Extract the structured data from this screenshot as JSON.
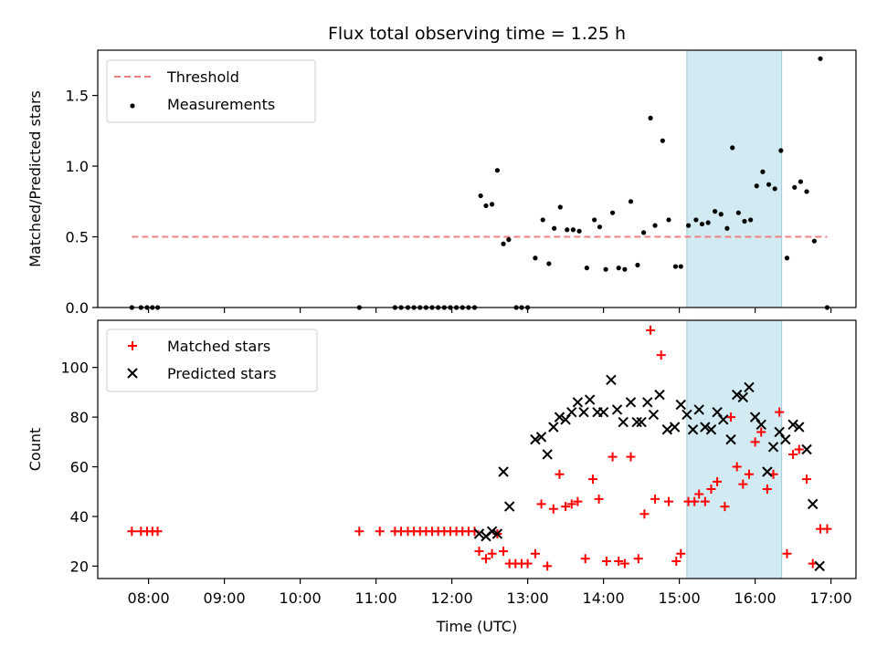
{
  "chart_data": [
    {
      "type": "scatter",
      "title": "Flux total observing time = 1.25 h",
      "xlabel": "",
      "ylabel": "Matched/Predicted stars",
      "xlim": [
        7.33,
        17.33
      ],
      "ylim": [
        0,
        1.82
      ],
      "yticks": [
        0,
        0.5,
        1.0,
        1.5
      ],
      "ytick_labels": [
        "0.0",
        "0.5",
        "1.0",
        "1.5"
      ],
      "highlight_span": {
        "x": [
          15.1,
          16.35
        ],
        "color": "#add8e6"
      },
      "legend": [
        {
          "label": "Threshold",
          "style": "dashed-line",
          "color": "#f08080"
        },
        {
          "label": "Measurements",
          "style": "dot",
          "color": "#000000"
        }
      ],
      "series": [
        {
          "name": "Threshold",
          "kind": "line",
          "color": "#f08080",
          "points": [
            [
              7.78,
              0.5
            ],
            [
              16.95,
              0.5
            ]
          ]
        },
        {
          "name": "Measurements",
          "kind": "scatter",
          "marker": "dot",
          "color": "#000000",
          "points": [
            [
              7.78,
              0
            ],
            [
              7.9,
              0
            ],
            [
              7.98,
              0
            ],
            [
              8.05,
              0
            ],
            [
              8.12,
              0
            ],
            [
              10.78,
              0
            ],
            [
              11.25,
              0
            ],
            [
              11.33,
              0
            ],
            [
              11.42,
              0
            ],
            [
              11.5,
              0
            ],
            [
              11.58,
              0
            ],
            [
              11.66,
              0
            ],
            [
              11.74,
              0
            ],
            [
              11.82,
              0
            ],
            [
              11.9,
              0
            ],
            [
              11.98,
              0
            ],
            [
              12.06,
              0
            ],
            [
              12.14,
              0
            ],
            [
              12.22,
              0
            ],
            [
              12.3,
              0
            ],
            [
              12.38,
              0.79
            ],
            [
              12.45,
              0.72
            ],
            [
              12.53,
              0.73
            ],
            [
              12.6,
              0.97
            ],
            [
              12.68,
              0.45
            ],
            [
              12.75,
              0.48
            ],
            [
              12.85,
              0
            ],
            [
              12.92,
              0
            ],
            [
              13.0,
              0
            ],
            [
              13.1,
              0.35
            ],
            [
              13.2,
              0.62
            ],
            [
              13.28,
              0.31
            ],
            [
              13.35,
              0.56
            ],
            [
              13.43,
              0.71
            ],
            [
              13.52,
              0.55
            ],
            [
              13.6,
              0.55
            ],
            [
              13.68,
              0.54
            ],
            [
              13.78,
              0.28
            ],
            [
              13.88,
              0.62
            ],
            [
              13.95,
              0.57
            ],
            [
              14.03,
              0.27
            ],
            [
              14.12,
              0.67
            ],
            [
              14.2,
              0.28
            ],
            [
              14.28,
              0.27
            ],
            [
              14.36,
              0.75
            ],
            [
              14.45,
              0.3
            ],
            [
              14.53,
              0.53
            ],
            [
              14.62,
              1.34
            ],
            [
              14.68,
              0.58
            ],
            [
              14.78,
              1.18
            ],
            [
              14.86,
              0.62
            ],
            [
              14.95,
              0.29
            ],
            [
              15.02,
              0.29
            ],
            [
              15.12,
              0.58
            ],
            [
              15.22,
              0.62
            ],
            [
              15.3,
              0.59
            ],
            [
              15.38,
              0.6
            ],
            [
              15.47,
              0.68
            ],
            [
              15.55,
              0.66
            ],
            [
              15.63,
              0.56
            ],
            [
              15.7,
              1.13
            ],
            [
              15.78,
              0.67
            ],
            [
              15.86,
              0.61
            ],
            [
              15.94,
              0.62
            ],
            [
              16.02,
              0.86
            ],
            [
              16.1,
              0.96
            ],
            [
              16.18,
              0.87
            ],
            [
              16.26,
              0.84
            ],
            [
              16.34,
              1.11
            ],
            [
              16.42,
              0.35
            ],
            [
              16.52,
              0.85
            ],
            [
              16.6,
              0.89
            ],
            [
              16.68,
              0.82
            ],
            [
              16.78,
              0.47
            ],
            [
              16.86,
              1.76
            ],
            [
              16.95,
              0
            ]
          ]
        }
      ]
    },
    {
      "type": "scatter",
      "title": "",
      "xlabel": "Time (UTC)",
      "ylabel": "Count",
      "xlim": [
        7.33,
        17.33
      ],
      "ylim": [
        15,
        119
      ],
      "yticks": [
        20,
        40,
        60,
        80,
        100
      ],
      "ytick_labels": [
        "20",
        "40",
        "60",
        "80",
        "100"
      ],
      "xticks": [
        8,
        9,
        10,
        11,
        12,
        13,
        14,
        15,
        16,
        17
      ],
      "xtick_labels": [
        "08:00",
        "09:00",
        "10:00",
        "11:00",
        "12:00",
        "13:00",
        "14:00",
        "15:00",
        "16:00",
        "17:00"
      ],
      "highlight_span": {
        "x": [
          15.1,
          16.35
        ],
        "color": "#add8e6"
      },
      "legend": [
        {
          "label": "Matched stars",
          "style": "plus",
          "color": "#ff0000"
        },
        {
          "label": "Predicted stars",
          "style": "cross",
          "color": "#000000"
        }
      ],
      "series": [
        {
          "name": "Matched stars",
          "kind": "scatter",
          "marker": "plus",
          "color": "#ff0000",
          "points": [
            [
              7.78,
              34
            ],
            [
              7.9,
              34
            ],
            [
              7.98,
              34
            ],
            [
              8.05,
              34
            ],
            [
              8.12,
              34
            ],
            [
              10.78,
              34
            ],
            [
              11.05,
              34
            ],
            [
              11.25,
              34
            ],
            [
              11.33,
              34
            ],
            [
              11.42,
              34
            ],
            [
              11.5,
              34
            ],
            [
              11.58,
              34
            ],
            [
              11.66,
              34
            ],
            [
              11.74,
              34
            ],
            [
              11.82,
              34
            ],
            [
              11.9,
              34
            ],
            [
              11.98,
              34
            ],
            [
              12.06,
              34
            ],
            [
              12.14,
              34
            ],
            [
              12.22,
              34
            ],
            [
              12.3,
              34
            ],
            [
              12.36,
              26
            ],
            [
              12.45,
              23
            ],
            [
              12.53,
              25
            ],
            [
              12.6,
              33
            ],
            [
              12.68,
              26
            ],
            [
              12.76,
              21
            ],
            [
              12.84,
              21
            ],
            [
              12.92,
              21
            ],
            [
              13.0,
              21
            ],
            [
              13.1,
              25
            ],
            [
              13.18,
              45
            ],
            [
              13.26,
              20
            ],
            [
              13.34,
              43
            ],
            [
              13.42,
              57
            ],
            [
              13.5,
              44
            ],
            [
              13.58,
              45
            ],
            [
              13.66,
              46
            ],
            [
              13.76,
              23
            ],
            [
              13.86,
              55
            ],
            [
              13.94,
              47
            ],
            [
              14.04,
              22
            ],
            [
              14.12,
              64
            ],
            [
              14.2,
              22
            ],
            [
              14.28,
              21
            ],
            [
              14.36,
              64
            ],
            [
              14.46,
              23
            ],
            [
              14.54,
              41
            ],
            [
              14.62,
              115
            ],
            [
              14.68,
              47
            ],
            [
              14.76,
              105
            ],
            [
              14.86,
              46
            ],
            [
              14.96,
              22
            ],
            [
              15.02,
              25
            ],
            [
              15.12,
              46
            ],
            [
              15.2,
              46
            ],
            [
              15.26,
              49
            ],
            [
              15.34,
              46
            ],
            [
              15.42,
              51
            ],
            [
              15.5,
              54
            ],
            [
              15.6,
              44
            ],
            [
              15.68,
              80
            ],
            [
              15.76,
              60
            ],
            [
              15.84,
              53
            ],
            [
              15.92,
              57
            ],
            [
              16.0,
              70
            ],
            [
              16.08,
              74
            ],
            [
              16.16,
              51
            ],
            [
              16.24,
              57
            ],
            [
              16.32,
              82
            ],
            [
              16.42,
              25
            ],
            [
              16.5,
              65
            ],
            [
              16.58,
              67
            ],
            [
              16.68,
              55
            ],
            [
              16.76,
              21
            ],
            [
              16.86,
              35
            ],
            [
              16.95,
              35
            ]
          ]
        },
        {
          "name": "Predicted stars",
          "kind": "scatter",
          "marker": "cross",
          "color": "#000000",
          "points": [
            [
              12.36,
              33
            ],
            [
              12.45,
              32
            ],
            [
              12.53,
              34
            ],
            [
              12.6,
              33
            ],
            [
              12.68,
              58
            ],
            [
              12.76,
              44
            ],
            [
              13.1,
              71
            ],
            [
              13.18,
              72
            ],
            [
              13.26,
              65
            ],
            [
              13.34,
              76
            ],
            [
              13.42,
              80
            ],
            [
              13.5,
              79
            ],
            [
              13.58,
              82
            ],
            [
              13.66,
              86
            ],
            [
              13.74,
              82
            ],
            [
              13.82,
              87
            ],
            [
              13.92,
              82
            ],
            [
              14.0,
              82
            ],
            [
              14.1,
              95
            ],
            [
              14.18,
              83
            ],
            [
              14.26,
              78
            ],
            [
              14.36,
              86
            ],
            [
              14.44,
              78
            ],
            [
              14.5,
              78
            ],
            [
              14.58,
              86
            ],
            [
              14.66,
              81
            ],
            [
              14.74,
              89
            ],
            [
              14.84,
              75
            ],
            [
              14.94,
              76
            ],
            [
              15.02,
              85
            ],
            [
              15.1,
              81
            ],
            [
              15.18,
              75
            ],
            [
              15.26,
              83
            ],
            [
              15.34,
              76
            ],
            [
              15.42,
              75
            ],
            [
              15.5,
              82
            ],
            [
              15.58,
              79
            ],
            [
              15.68,
              71
            ],
            [
              15.76,
              89
            ],
            [
              15.84,
              88
            ],
            [
              15.92,
              92
            ],
            [
              16.0,
              80
            ],
            [
              16.08,
              77
            ],
            [
              16.16,
              58
            ],
            [
              16.24,
              68
            ],
            [
              16.32,
              74
            ],
            [
              16.4,
              71
            ],
            [
              16.5,
              77
            ],
            [
              16.58,
              76
            ],
            [
              16.68,
              67
            ],
            [
              16.76,
              45
            ],
            [
              16.85,
              20
            ]
          ]
        }
      ]
    }
  ]
}
